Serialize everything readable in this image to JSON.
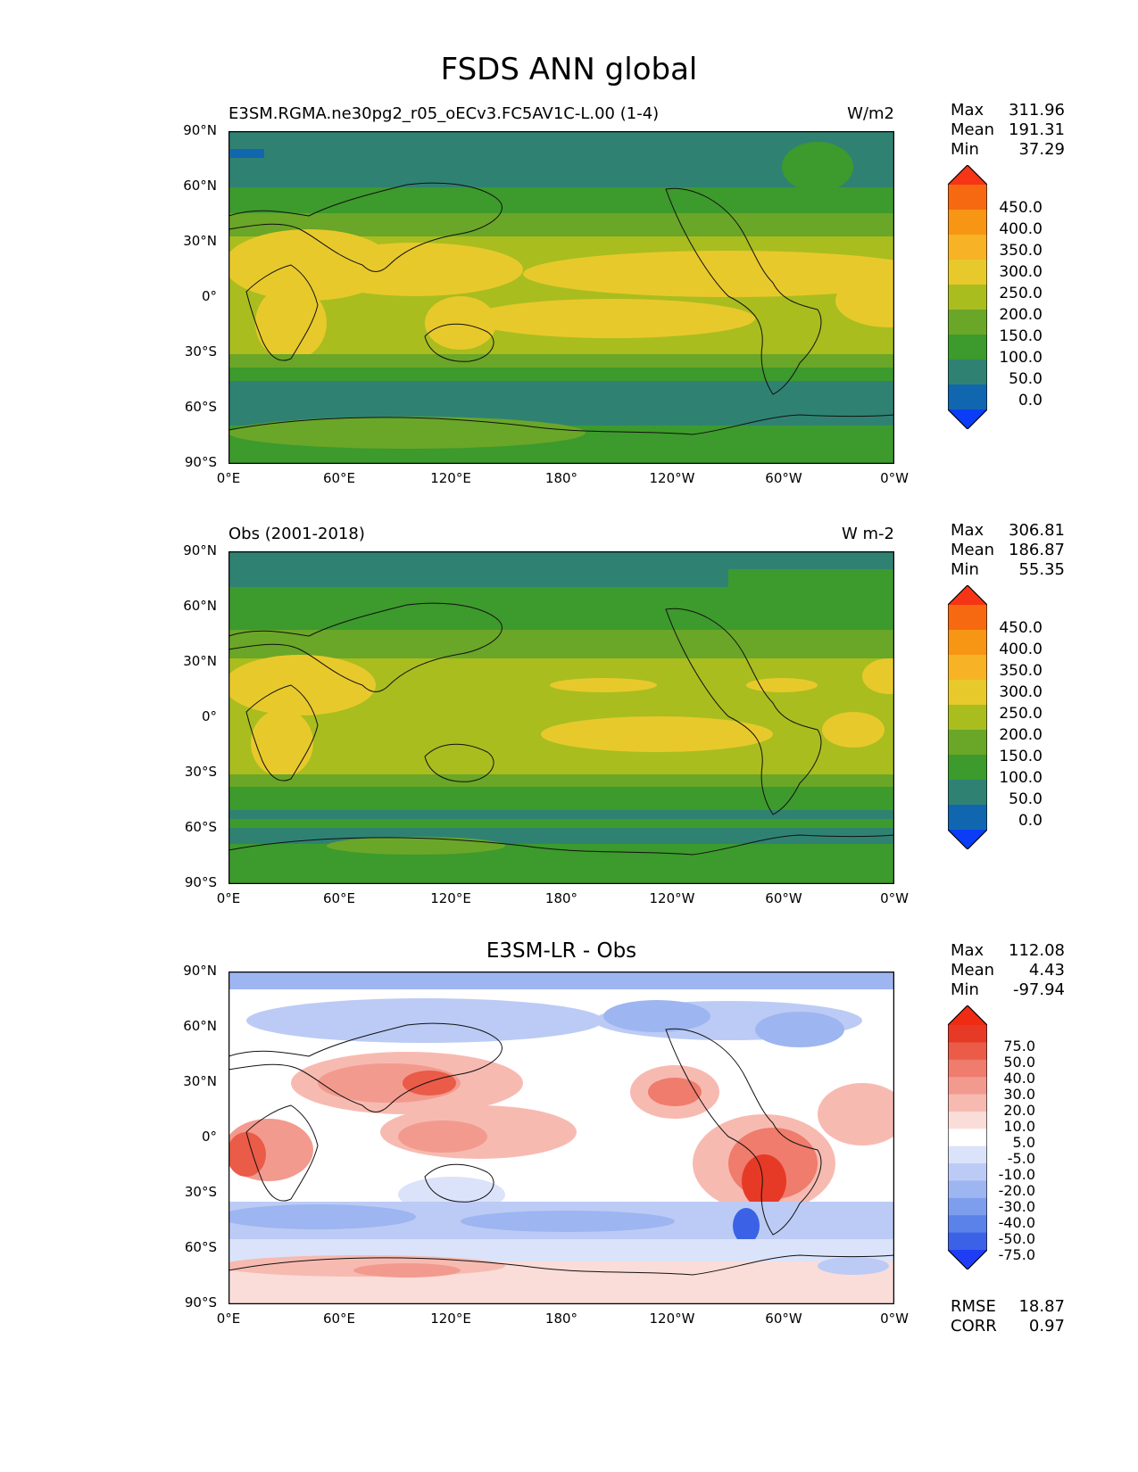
{
  "title": "FSDS ANN global",
  "axes": {
    "lat_labels": [
      "90°N",
      "60°N",
      "30°N",
      "0°",
      "30°S",
      "60°S",
      "90°S"
    ],
    "lon_labels": [
      "0°E",
      "60°E",
      "120°E",
      "180°",
      "120°W",
      "60°W",
      "0°W"
    ]
  },
  "stat_labels": {
    "max": "Max",
    "mean": "Mean",
    "min": "Min",
    "rmse": "RMSE",
    "corr": "CORR"
  },
  "panels": [
    {
      "title": "E3SM.RGMA.ne30pg2_r05_oECv3.FC5AV1C-L.00 (1-4)",
      "units": "W/m2",
      "max": "311.96",
      "mean": "191.31",
      "min": "37.29",
      "colorbar_labels": [
        "450.0",
        "400.0",
        "350.0",
        "300.0",
        "250.0",
        "200.0",
        "150.0",
        "100.0",
        "50.0",
        "0.0"
      ]
    },
    {
      "title": "Obs (2001-2018)",
      "units": "W m-2",
      "max": "306.81",
      "mean": "186.87",
      "min": "55.35",
      "colorbar_labels": [
        "450.0",
        "400.0",
        "350.0",
        "300.0",
        "250.0",
        "200.0",
        "150.0",
        "100.0",
        "50.0",
        "0.0"
      ]
    },
    {
      "title": "E3SM-LR - Obs",
      "max": "112.08",
      "mean": "4.43",
      "min": "-97.94",
      "rmse": "18.87",
      "corr": "0.97",
      "colorbar_labels": [
        "75.0",
        "50.0",
        "40.0",
        "30.0",
        "20.0",
        "10.0",
        "5.0",
        "-5.0",
        "-10.0",
        "-20.0",
        "-30.0",
        "-40.0",
        "-50.0",
        "-75.0"
      ]
    }
  ],
  "colors": {
    "seq": [
      "#0a3df5",
      "#1166b0",
      "#2f8272",
      "#3d9a2c",
      "#6aa628",
      "#a9bd1f",
      "#e8c92b",
      "#f7b325",
      "#f79514",
      "#f76910",
      "#f63416"
    ],
    "div": [
      "#1f3df5",
      "#3b62e6",
      "#5a82e8",
      "#7d9ded",
      "#9db5f0",
      "#bccbf5",
      "#dbe3fa",
      "#ffffff",
      "#fadcd8",
      "#f7bab1",
      "#f39a8e",
      "#ef7c6c",
      "#ea5b48",
      "#e63a26",
      "#f02b14"
    ]
  }
}
